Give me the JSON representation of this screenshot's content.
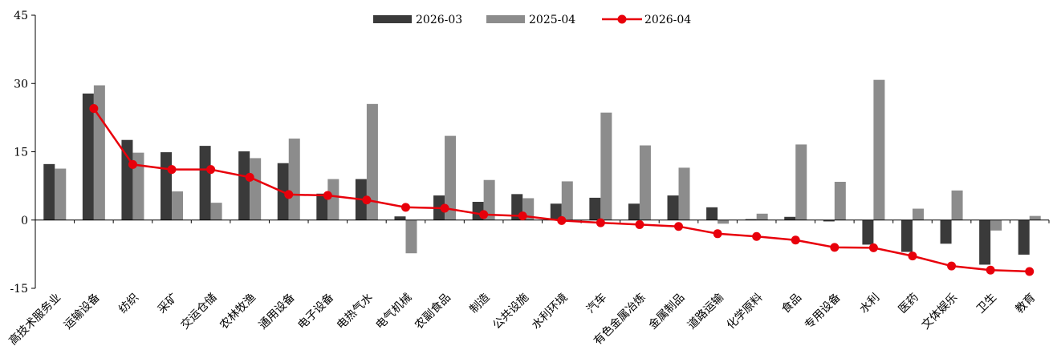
{
  "chart_data": {
    "type": "bar",
    "title": "",
    "xlabel": "",
    "ylabel": "",
    "ylim": [
      -15,
      45
    ],
    "yticks": [
      -15,
      0,
      15,
      30,
      45
    ],
    "legend_position": "top-center",
    "grid": false,
    "categories": [
      "高技术服务业",
      "运输设备",
      "纺织",
      "采矿",
      "交运仓储",
      "农林牧渔",
      "通用设备",
      "电子设备",
      "电热气水",
      "电气机械",
      "农副食品",
      "制造",
      "公共设施",
      "水利环境",
      "汽车",
      "有色金属冶炼",
      "金属制品",
      "道路运输",
      "化学原料",
      "食品",
      "专用设备",
      "水利",
      "医药",
      "文体娱乐",
      "卫生",
      "教育"
    ],
    "series": [
      {
        "name": "2026-03",
        "kind": "bar",
        "color": "#3a3a3a",
        "values": [
          12.3,
          27.8,
          17.6,
          14.9,
          16.3,
          15.1,
          12.5,
          5.8,
          9.0,
          0.8,
          5.4,
          4.0,
          5.7,
          3.6,
          4.9,
          3.6,
          5.4,
          2.8,
          0.2,
          0.7,
          -0.3,
          -5.4,
          -7.0,
          -5.2,
          -9.8,
          -7.6
        ]
      },
      {
        "name": "2025-04",
        "kind": "bar",
        "color": "#8c8c8c",
        "values": [
          11.3,
          29.6,
          14.8,
          6.3,
          3.8,
          13.6,
          17.9,
          9.0,
          25.5,
          -7.3,
          18.5,
          8.8,
          4.8,
          8.5,
          23.6,
          16.4,
          11.5,
          -0.8,
          1.4,
          16.6,
          8.4,
          30.8,
          2.5,
          6.5,
          -2.3,
          0.9
        ]
      },
      {
        "name": "2026-04",
        "kind": "line",
        "color": "#e8000b",
        "values": [
          null,
          24.5,
          12.2,
          11.1,
          11.1,
          9.4,
          5.6,
          5.4,
          4.4,
          2.8,
          2.6,
          1.2,
          0.9,
          -0.1,
          -0.6,
          -1.0,
          -1.4,
          -3.0,
          -3.6,
          -4.4,
          -6.0,
          -6.1,
          -7.9,
          -10.1,
          -11.0,
          -11.3
        ]
      }
    ]
  }
}
